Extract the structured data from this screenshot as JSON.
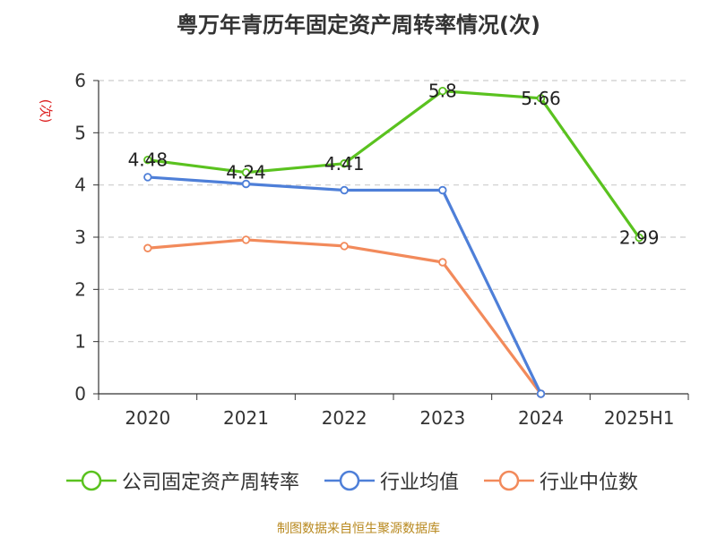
{
  "chart_data": {
    "type": "line",
    "title": "粤万年青历年固定资产周转率情况(次)",
    "ylabel": "(次)",
    "categories": [
      "2020",
      "2021",
      "2022",
      "2023",
      "2024",
      "2025H1"
    ],
    "ylim": [
      0,
      6
    ],
    "yticks": [
      "0",
      "1",
      "2",
      "3",
      "4",
      "5",
      "6"
    ],
    "grid": true,
    "legend_position": "bottom",
    "series": [
      {
        "name": "公司固定资产周转率",
        "values": [
          4.48,
          4.24,
          4.41,
          5.8,
          5.66,
          2.99
        ],
        "labels": [
          "4.48",
          "4.24",
          "4.41",
          "5.8",
          "5.66",
          "2.99"
        ],
        "color": "#5ac21f"
      },
      {
        "name": "行业均值",
        "values": [
          4.15,
          4.02,
          3.9,
          3.9,
          0,
          null
        ],
        "color": "#4e7fd8"
      },
      {
        "name": "行业中位数",
        "values": [
          2.79,
          2.95,
          2.83,
          2.52,
          0,
          null
        ],
        "color": "#f28a5b"
      }
    ],
    "source": "制图数据来自恒生聚源数据库"
  }
}
